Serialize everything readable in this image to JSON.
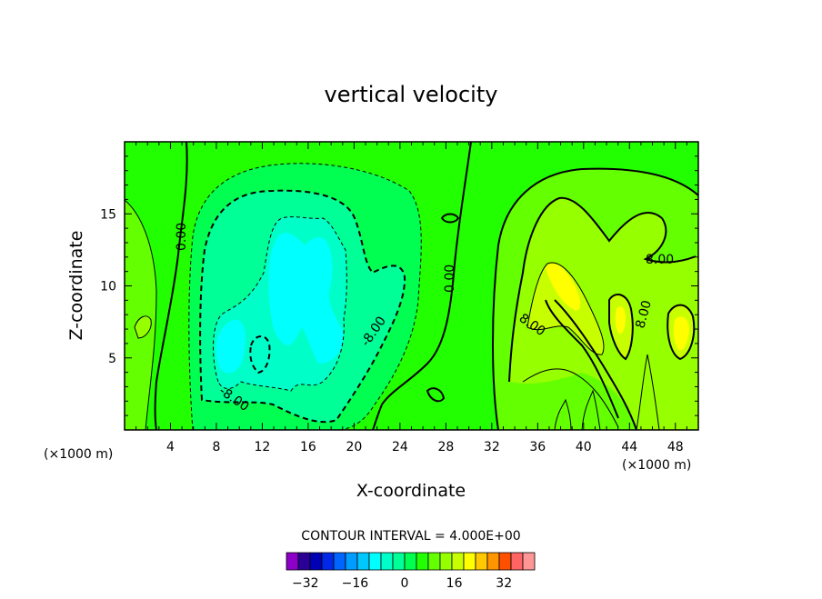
{
  "chart_data": {
    "type": "heatmap",
    "subtype": "filled contour plot",
    "title": "vertical velocity",
    "xlabel": "X-coordinate",
    "ylabel": "Z-coordinate",
    "x_unit_label": "(×1000 m)",
    "xlim": [
      0,
      50
    ],
    "ylim": [
      0,
      20
    ],
    "x_ticks": [
      "4",
      "8",
      "12",
      "16",
      "20",
      "24",
      "28",
      "32",
      "36",
      "40",
      "44",
      "48"
    ],
    "y_ticks": [
      "5",
      "10",
      "15"
    ],
    "contour_interval_text": "CONTOUR INTERVAL = 4.000E+00",
    "contour_labels": [
      "0.00",
      "0.00",
      "-8.00",
      "-8.00",
      "8.00",
      "8.00",
      "8.00"
    ],
    "colorbar": {
      "tick_labels": [
        "-32",
        "-16",
        "0",
        "16",
        "32"
      ],
      "tick_values": [
        -32,
        -16,
        0,
        16,
        32
      ],
      "levels": [
        -40,
        -36,
        -32,
        -28,
        -24,
        -20,
        -16,
        -12,
        -8,
        -4,
        0,
        4,
        8,
        12,
        16,
        20,
        24,
        28,
        32,
        36,
        40
      ],
      "colors": [
        "#8c00c8",
        "#2a0096",
        "#0000b4",
        "#0028e6",
        "#0064ff",
        "#009cff",
        "#00c8ff",
        "#00ffff",
        "#00ffc8",
        "#00ff96",
        "#00ff50",
        "#22ff00",
        "#64ff00",
        "#96ff00",
        "#c8ff00",
        "#ffff00",
        "#ffc800",
        "#ff9600",
        "#ff5000",
        "#ff6464",
        "#ff9696"
      ]
    },
    "fill_colors": {
      "background": "#22ff00",
      "level_neg4": "#00ff50",
      "level_neg8": "#00ff96",
      "level_neg12": "#00ffc8",
      "level_neg16": "#00ffff",
      "level_4": "#64ff00",
      "level_8": "#96ff00",
      "level_12": "#c8ff00",
      "level_16": "#ffff00"
    }
  }
}
